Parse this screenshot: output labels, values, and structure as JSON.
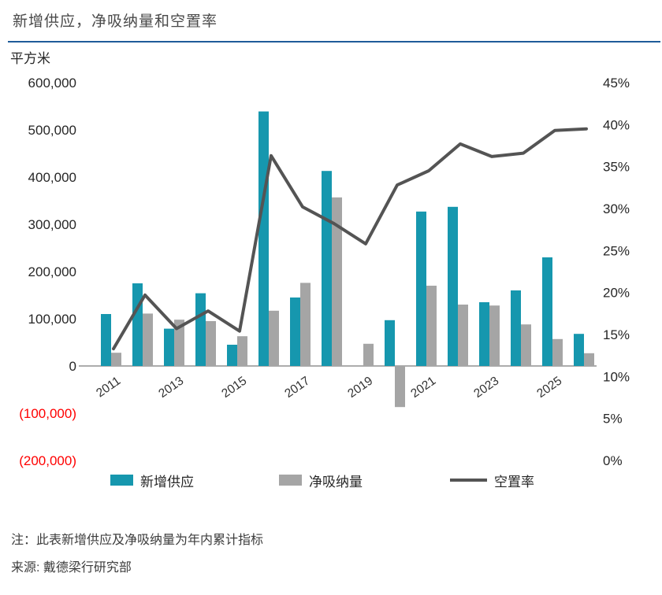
{
  "header": {
    "title": "新增供应，净吸纳量和空置率"
  },
  "legend": {
    "new_supply": "新增供应",
    "net_absorption": "净吸纳量",
    "vacancy_rate": "空置率"
  },
  "footnotes": {
    "note": "注：此表新增供应及净吸纳量为年内累计指标",
    "source": "来源: 戴德梁行研究部"
  },
  "colors": {
    "new_supply": "#1697AE",
    "net_absorption": "#A5A5A5",
    "vacancy_line": "#545454",
    "axis_line": "#ADADAD",
    "tick_text": "#262626",
    "negative_tick": "#FF0000",
    "title_rule": "#1F5C99"
  },
  "chart_data": {
    "type": "combo-bar-line",
    "title": "新增供应，净吸纳量和空置率",
    "categories": [
      "2011",
      "2012",
      "2013",
      "2014",
      "2015",
      "2016",
      "2017",
      "2018",
      "2019",
      "2020",
      "2021",
      "2022",
      "2023",
      "2024",
      "2025",
      "2026"
    ],
    "series": [
      {
        "name": "新增供应",
        "type": "bar",
        "axis": "left",
        "values": [
          110000,
          175000,
          79000,
          154000,
          45000,
          539000,
          145000,
          413000,
          0,
          97000,
          327000,
          337000,
          135000,
          160000,
          230000,
          68000
        ]
      },
      {
        "name": "净吸纳量",
        "type": "bar",
        "axis": "left",
        "values": [
          28000,
          111000,
          98000,
          95000,
          63000,
          117000,
          176000,
          357000,
          47000,
          -87000,
          170000,
          130000,
          128000,
          88000,
          57000,
          27000
        ]
      },
      {
        "name": "空置率",
        "type": "line",
        "axis": "right",
        "values": [
          13.3,
          19.7,
          15.7,
          17.8,
          15.4,
          36.3,
          30.2,
          28.2,
          25.8,
          32.8,
          34.5,
          37.7,
          36.2,
          36.6,
          39.3,
          39.5
        ]
      }
    ],
    "left_axis": {
      "title": "平方米",
      "ticks": [
        "600,000",
        "500,000",
        "400,000",
        "300,000",
        "200,000",
        "100,000",
        "0",
        "(100,000)",
        "(200,000)"
      ],
      "range": [
        -200000,
        600000
      ]
    },
    "right_axis": {
      "ticks": [
        "45%",
        "40%",
        "35%",
        "30%",
        "25%",
        "20%",
        "15%",
        "10%",
        "5%",
        "0%"
      ],
      "range": [
        0,
        45
      ]
    },
    "x_axis": {
      "tick_labels": [
        "2011",
        "2013",
        "2015",
        "2017",
        "2019",
        "2021",
        "2023",
        "2025"
      ]
    },
    "grid": "off",
    "legend_position": "bottom"
  }
}
